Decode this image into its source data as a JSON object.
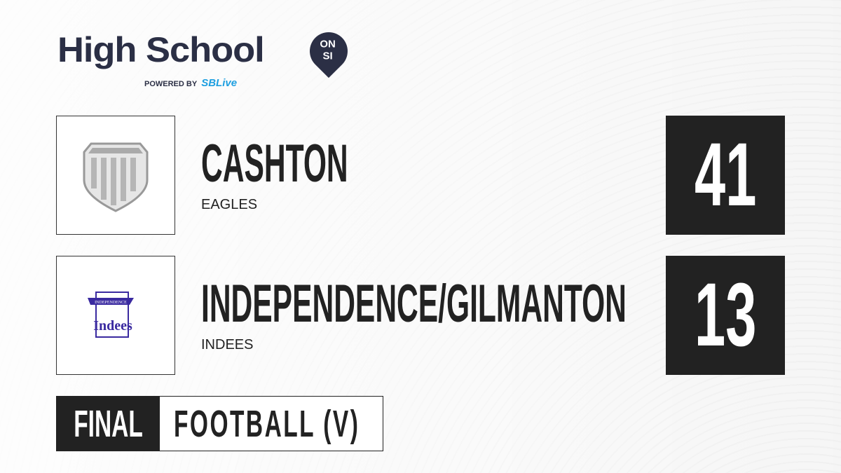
{
  "brand": {
    "title": "High School",
    "badge_top": "ON",
    "badge_bottom": "SI",
    "powered_by": "POWERED BY",
    "partner": "SBLive"
  },
  "teams": [
    {
      "name": "CASHTON",
      "mascot": "EAGLES",
      "score": "41",
      "logo": "shield-icon"
    },
    {
      "name": "INDEPENDENCE/GILMANTON",
      "mascot": "INDEES",
      "score": "13",
      "logo": "indees-logo",
      "logo_text_top": "INDEPENDENCE",
      "logo_text": "Indees"
    }
  ],
  "status": "FINAL",
  "sport": "FOOTBALL (V)",
  "colors": {
    "dark": "#222222",
    "brand": "#2b2f45",
    "partner": "#1e9fe0",
    "indees": "#3a2aa0"
  }
}
